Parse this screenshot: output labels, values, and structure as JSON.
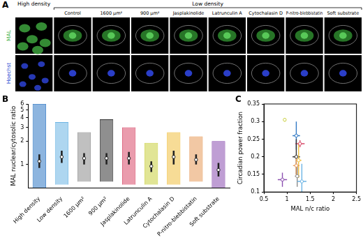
{
  "image_panel": {
    "panel": "A",
    "rows": [
      {
        "label": "MAL",
        "color": "#3cb043"
      },
      {
        "label": "Hoechst",
        "color": "#2040d0"
      }
    ],
    "groups": [
      {
        "label": "High density",
        "columns": [
          null
        ]
      },
      {
        "label": "Low density",
        "columns": [
          "Control",
          "1600 µm²",
          "900 µm²",
          "Jasplakinolide",
          "Latrunculin A",
          "Cytochalasin D",
          "P-nitro-blebbistatin",
          "Soft substrate"
        ]
      }
    ]
  },
  "chart_data": [
    {
      "panel": "B",
      "type": "violin",
      "y_label": "MAL nuclear/cytosolic ratio",
      "categories": [
        "High density",
        "Low density",
        "1600 µm²",
        "900 µm²",
        "Jasplakinolide",
        "Latrunculin A",
        "Cytochalasin D",
        "P-nitro-blebbistatin",
        "Soft substrate"
      ],
      "min": [
        0.5,
        0.55,
        0.6,
        0.6,
        0.55,
        0.55,
        0.55,
        0.6,
        0.5
      ],
      "q1": [
        0.9,
        1.05,
        1.0,
        1.0,
        1.0,
        0.8,
        1.0,
        1.0,
        0.7
      ],
      "median": [
        1.1,
        1.25,
        1.2,
        1.2,
        1.2,
        0.95,
        1.25,
        1.15,
        0.85
      ],
      "q3": [
        1.35,
        1.5,
        1.4,
        1.4,
        1.45,
        1.1,
        1.5,
        1.35,
        1.05
      ],
      "max": [
        6,
        3.5,
        2.6,
        3.8,
        3.0,
        1.9,
        2.6,
        2.3,
        2.0
      ],
      "colors": [
        "#2f78c4",
        "#6cb4e4",
        "#8c8c8c",
        "#333333",
        "#d84a6a",
        "#c9cf3e",
        "#f0c040",
        "#e89a5a",
        "#8b4fb0"
      ],
      "log": "y",
      "ylim": [
        0.5,
        6
      ],
      "yticks": [
        1,
        2,
        3,
        4,
        5,
        6
      ],
      "grid": false
    },
    {
      "panel": "C",
      "type": "scatter",
      "x_label": "MAL n/c ratio",
      "y_label": "Circadian power fraction",
      "x": [
        0.9,
        0.95,
        1.2,
        1.28,
        1.2,
        1.25,
        1.2,
        1.22,
        1.32
      ],
      "y": [
        0.135,
        0.305,
        0.26,
        0.237,
        0.2,
        0.19,
        0.175,
        0.145,
        0.13
      ],
      "x_err": [
        0.1,
        0.02,
        0.08,
        0.1,
        0.08,
        0.06,
        0.07,
        0.05,
        0.1
      ],
      "y_err": [
        0.02,
        0.005,
        0.04,
        0.01,
        0.05,
        0.05,
        0.03,
        0.03,
        0.05
      ],
      "colors": [
        "#8b4fb0",
        "#c9cf3e",
        "#2f78c4",
        "#d84a6a",
        "#333333",
        "#f0c040",
        "#e89a5a",
        "#8c8c8c",
        "#6cb4e4"
      ],
      "marker": "open_circle",
      "xlim": [
        0.5,
        2.5
      ],
      "xticks": [
        0.5,
        1,
        1.5,
        2,
        2.5
      ],
      "ylim": [
        0.1,
        0.35
      ],
      "yticks": [
        0.1,
        0.15,
        0.2,
        0.25,
        0.3,
        0.35
      ],
      "grid": false
    }
  ]
}
